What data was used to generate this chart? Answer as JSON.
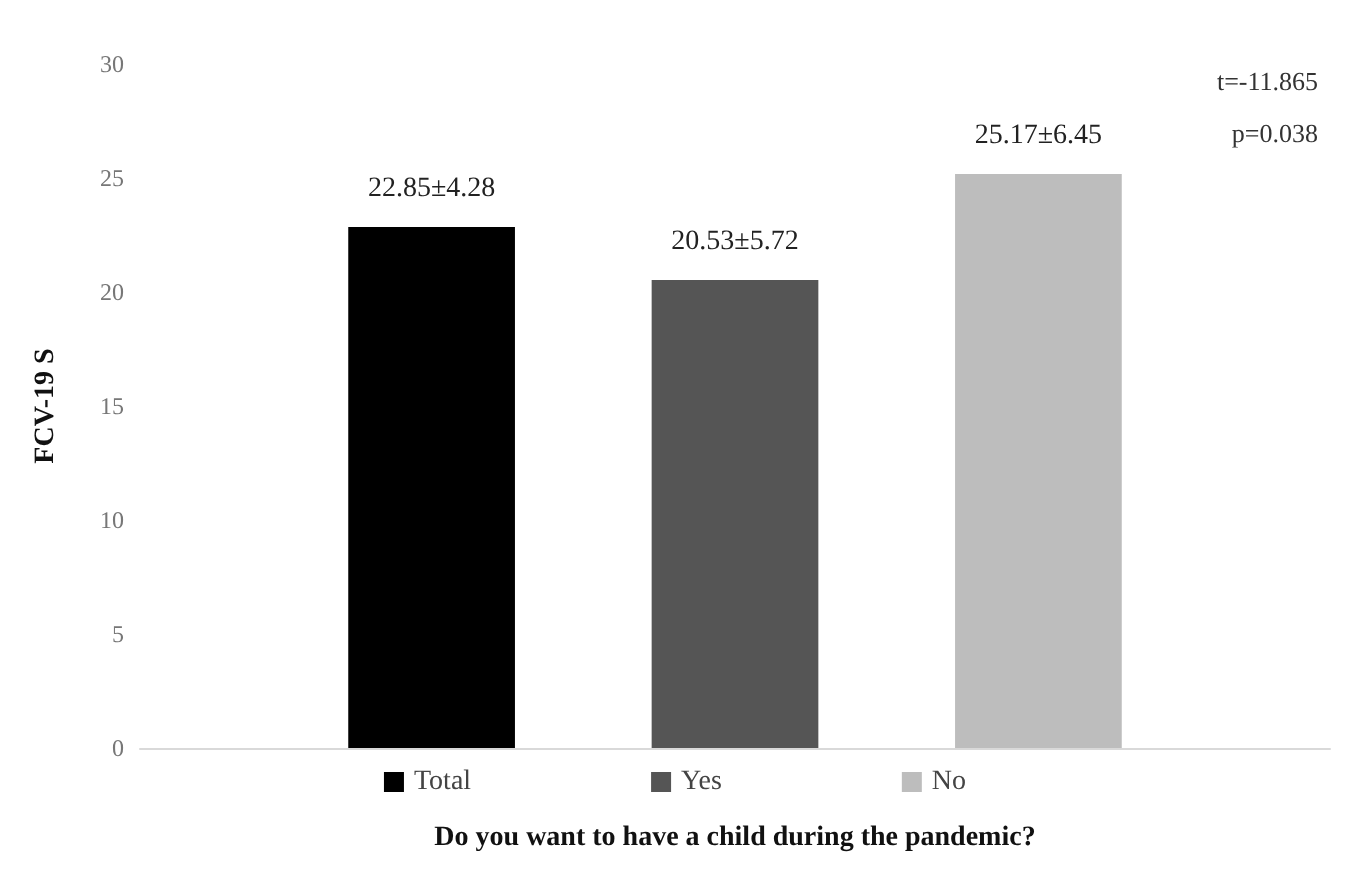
{
  "chart_data": {
    "type": "bar",
    "xlabel": "Do you want to have a child during the pandemic?",
    "ylabel": "FCV-19 S",
    "categories": [
      null
    ],
    "series": [
      {
        "name": "Total",
        "color": "#000000",
        "values": [
          22.85
        ],
        "value_labels": [
          "22.85±4.28"
        ]
      },
      {
        "name": "Yes",
        "color": "#555555",
        "values": [
          20.53
        ],
        "value_labels": [
          "20.53±5.72"
        ]
      },
      {
        "name": "No",
        "color": "#bdbdbd",
        "values": [
          25.17
        ],
        "value_labels": [
          "25.17±6.45"
        ]
      }
    ],
    "ylim": [
      0,
      30
    ],
    "yticks": [
      0,
      5,
      10,
      15,
      20,
      25,
      30
    ],
    "grid": false,
    "legend": "bottom",
    "annotations": [
      "t=-11.865",
      "p=0.038"
    ]
  }
}
